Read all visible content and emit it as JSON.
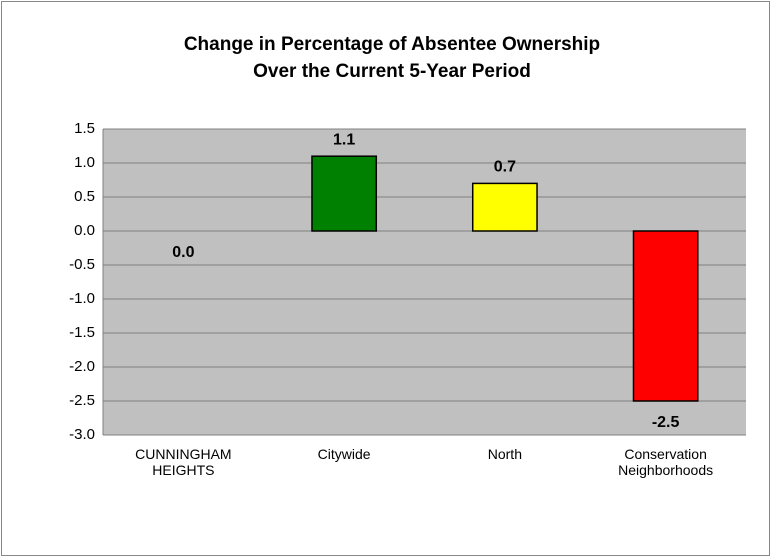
{
  "chart_data": {
    "type": "bar",
    "title": "Change in Percentage of Absentee Ownership",
    "subtitle": "Over the Current 5-Year Period",
    "categories": [
      "CUNNINGHAM HEIGHTS",
      "Citywide",
      "North",
      "Conservation Neighborhoods"
    ],
    "values": [
      0,
      1.1,
      0.7,
      -2.5
    ],
    "value_labels": [
      "0.0",
      "1.1",
      "0.7",
      "-2.5"
    ],
    "colors": [
      null,
      "#008000",
      "#ffff00",
      "#ff0000"
    ],
    "ylim": [
      -3,
      1.5
    ],
    "yticks": [
      {
        "value": -3,
        "label": "-3.0"
      },
      -2.5,
      {
        "value": -2,
        "label": "-2.0"
      },
      -1.5,
      {
        "value": -1,
        "label": "-1.0"
      },
      -0.5,
      {
        "value": 0,
        "label": "0.0"
      },
      0.5,
      {
        "value": 1,
        "label": "1.0"
      },
      1.5
    ],
    "grid": true
  }
}
